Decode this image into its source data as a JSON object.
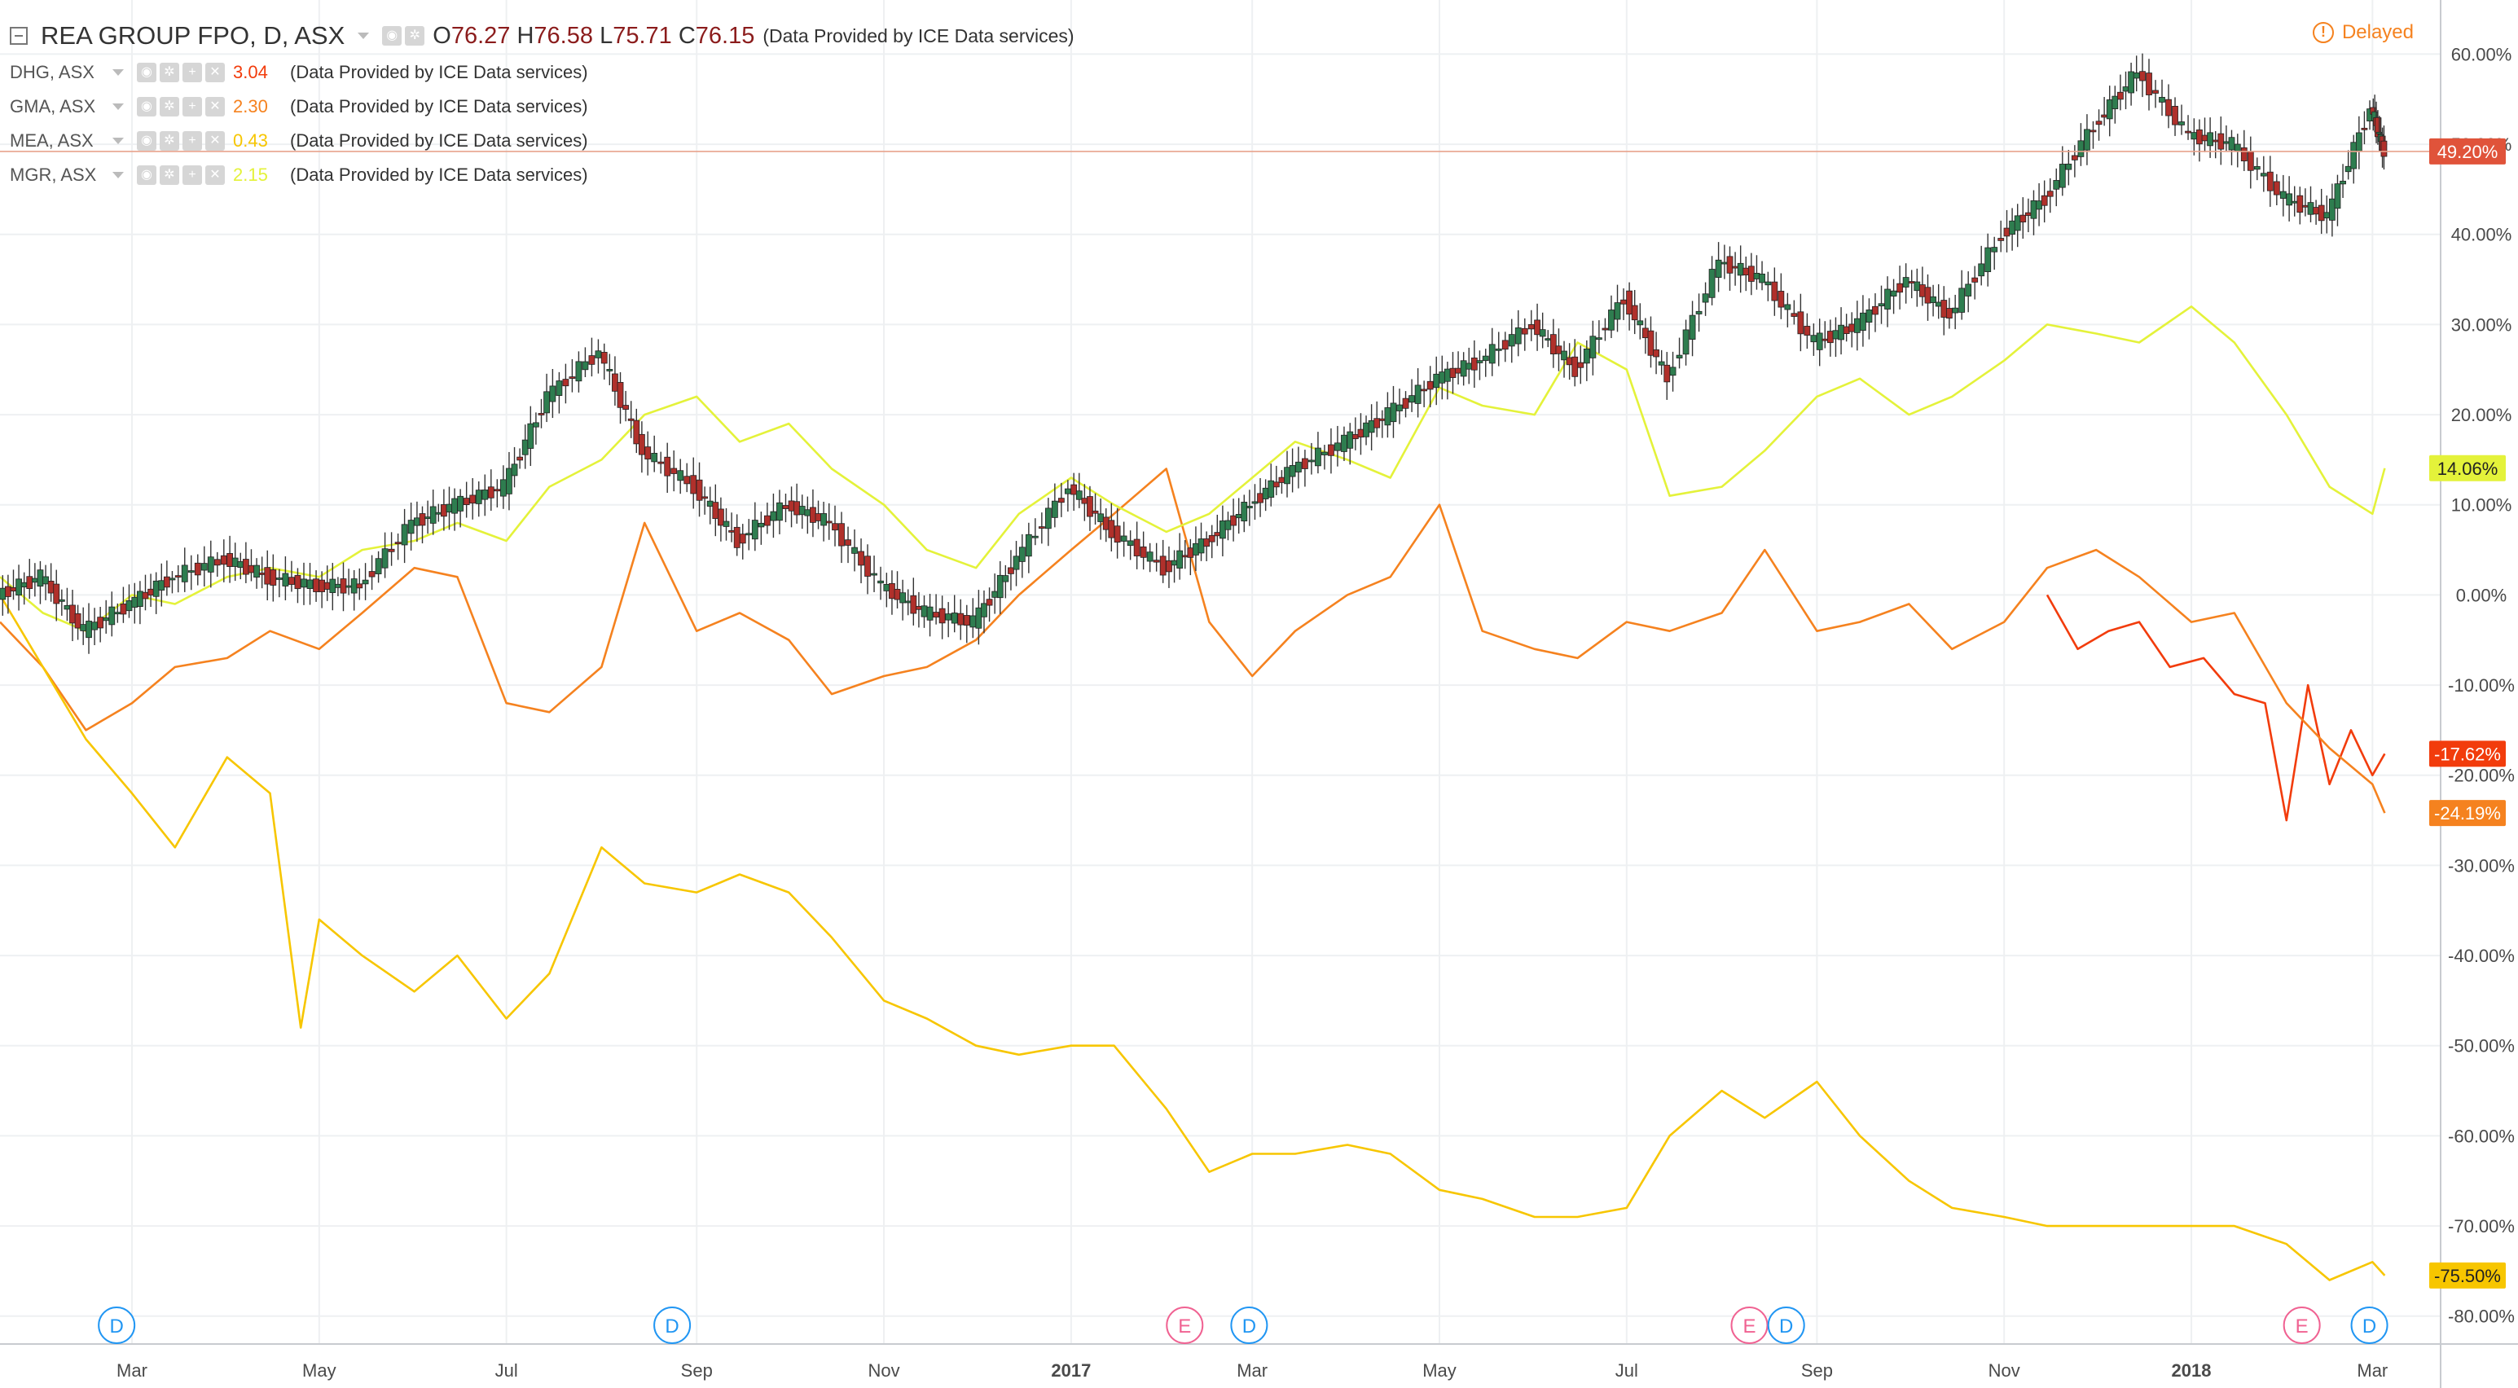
{
  "header": {
    "symbol": "REA GROUP FPO, D, ASX",
    "open_label": "O",
    "open": "76.27",
    "high_label": "H",
    "high": "76.58",
    "low_label": "L",
    "low": "75.71",
    "close_label": "C",
    "close": "76.15",
    "provider": "(Data Provided by ICE Data services)"
  },
  "status": {
    "delayed": "Delayed",
    "icon": "alert-circle-icon",
    "color": "#f5821f"
  },
  "comparisons": [
    {
      "name": "DHG, ASX",
      "value": "3.04",
      "color": "#f23c0c",
      "provider": "(Data Provided by ICE Data services)"
    },
    {
      "name": "GMA, ASX",
      "value": "2.30",
      "color": "#f5821f",
      "provider": "(Data Provided by ICE Data services)"
    },
    {
      "name": "MEA, ASX",
      "value": "0.43",
      "color": "#f7c600",
      "provider": "(Data Provided by ICE Data services)"
    },
    {
      "name": "MGR, ASX",
      "value": "2.15",
      "color": "#e4f23a",
      "provider": "(Data Provided by ICE Data services)"
    }
  ],
  "chart_data": {
    "type": "line",
    "candles_up_color": "#2e7d4f",
    "candles_down_color": "#b0302b",
    "y_axis": {
      "unit": "%",
      "range": [
        -84,
        66
      ],
      "ticks": [
        "60.00%",
        "50.00%",
        "40.00%",
        "30.00%",
        "20.00%",
        "10.00%",
        "0.00%",
        "-10.00%",
        "-20.00%",
        "-30.00%",
        "-40.00%",
        "-50.00%",
        "-60.00%",
        "-70.00%",
        "-80.00%"
      ]
    },
    "x_axis": {
      "ticks": [
        {
          "label": "Mar",
          "date": "2016-03-01",
          "bold": false
        },
        {
          "label": "May",
          "date": "2016-05-01",
          "bold": false
        },
        {
          "label": "Jul",
          "date": "2016-07-01",
          "bold": false
        },
        {
          "label": "Sep",
          "date": "2016-09-01",
          "bold": false
        },
        {
          "label": "Nov",
          "date": "2016-11-01",
          "bold": false
        },
        {
          "label": "2017",
          "date": "2017-01-01",
          "bold": true
        },
        {
          "label": "Mar",
          "date": "2017-03-01",
          "bold": false
        },
        {
          "label": "May",
          "date": "2017-05-01",
          "bold": false
        },
        {
          "label": "Jul",
          "date": "2017-07-01",
          "bold": false
        },
        {
          "label": "Sep",
          "date": "2017-09-01",
          "bold": false
        },
        {
          "label": "Nov",
          "date": "2017-11-01",
          "bold": false
        },
        {
          "label": "2018",
          "date": "2018-01-01",
          "bold": true
        },
        {
          "label": "Mar",
          "date": "2018-03-01",
          "bold": false
        }
      ]
    },
    "series": [
      {
        "name": "REA GROUP FPO, D, ASX",
        "style": "candles",
        "color": "#2e7d4f",
        "last_label": "49.20%",
        "last_value": 49.2,
        "x": [
          "2016-01-18",
          "2016-02-01",
          "2016-02-15",
          "2016-03-01",
          "2016-03-15",
          "2016-04-01",
          "2016-04-15",
          "2016-05-01",
          "2016-05-15",
          "2016-06-01",
          "2016-06-15",
          "2016-07-01",
          "2016-07-15",
          "2016-08-01",
          "2016-08-15",
          "2016-09-01",
          "2016-09-15",
          "2016-10-01",
          "2016-10-15",
          "2016-11-01",
          "2016-11-15",
          "2016-12-01",
          "2016-12-15",
          "2017-01-01",
          "2017-01-15",
          "2017-02-01",
          "2017-02-15",
          "2017-03-01",
          "2017-03-15",
          "2017-04-01",
          "2017-04-15",
          "2017-05-01",
          "2017-05-15",
          "2017-06-01",
          "2017-06-15",
          "2017-07-01",
          "2017-07-15",
          "2017-08-01",
          "2017-08-15",
          "2017-09-01",
          "2017-09-15",
          "2017-10-01",
          "2017-10-15",
          "2017-11-01",
          "2017-11-15",
          "2017-12-01",
          "2017-12-15",
          "2018-01-01",
          "2018-01-15",
          "2018-02-01",
          "2018-02-15",
          "2018-03-01",
          "2018-03-05"
        ],
        "values": [
          0,
          2,
          -4,
          -1,
          2,
          4,
          2,
          1,
          1,
          8,
          10,
          12,
          22,
          27,
          16,
          12,
          6,
          10,
          8,
          1,
          -2,
          -3,
          4,
          12,
          7,
          3,
          6,
          10,
          14,
          17,
          20,
          24,
          26,
          30,
          25,
          33,
          24,
          37,
          35,
          28,
          30,
          35,
          31,
          40,
          44,
          52,
          58,
          51,
          50,
          44,
          42,
          54,
          49.2
        ]
      },
      {
        "name": "DHG, ASX",
        "color": "#f23c0c",
        "last_label": "-17.62%",
        "last_value": -17.62,
        "x": [
          "2017-11-15",
          "2017-11-25",
          "2017-12-05",
          "2017-12-15",
          "2017-12-25",
          "2018-01-05",
          "2018-01-15",
          "2018-01-25",
          "2018-02-01",
          "2018-02-08",
          "2018-02-15",
          "2018-02-22",
          "2018-03-01",
          "2018-03-05"
        ],
        "values": [
          0,
          -6,
          -4,
          -3,
          -8,
          -7,
          -11,
          -12,
          -25,
          -10,
          -21,
          -15,
          -20,
          -17.62
        ]
      },
      {
        "name": "GMA, ASX",
        "color": "#f5821f",
        "last_label": "-24.19%",
        "last_value": -24.19,
        "x": [
          "2016-01-18",
          "2016-02-01",
          "2016-02-15",
          "2016-03-01",
          "2016-03-15",
          "2016-04-01",
          "2016-04-15",
          "2016-05-01",
          "2016-05-15",
          "2016-06-01",
          "2016-06-15",
          "2016-07-01",
          "2016-07-15",
          "2016-08-01",
          "2016-08-15",
          "2016-09-01",
          "2016-09-15",
          "2016-10-01",
          "2016-10-15",
          "2016-11-01",
          "2016-11-15",
          "2016-12-01",
          "2016-12-15",
          "2017-01-01",
          "2017-01-15",
          "2017-02-01",
          "2017-02-15",
          "2017-03-01",
          "2017-03-15",
          "2017-04-01",
          "2017-04-15",
          "2017-05-01",
          "2017-05-15",
          "2017-06-01",
          "2017-06-15",
          "2017-07-01",
          "2017-07-15",
          "2017-08-01",
          "2017-08-15",
          "2017-09-01",
          "2017-09-15",
          "2017-10-01",
          "2017-10-15",
          "2017-11-01",
          "2017-11-15",
          "2017-12-01",
          "2017-12-15",
          "2018-01-01",
          "2018-01-15",
          "2018-02-01",
          "2018-02-15",
          "2018-03-01",
          "2018-03-05"
        ],
        "values": [
          -3,
          -8,
          -15,
          -12,
          -8,
          -7,
          -4,
          -6,
          -2,
          3,
          2,
          -12,
          -13,
          -8,
          8,
          -4,
          -2,
          -5,
          -11,
          -9,
          -8,
          -5,
          0,
          5,
          9,
          14,
          -3,
          -9,
          -4,
          0,
          2,
          10,
          -4,
          -6,
          -7,
          -3,
          -4,
          -2,
          5,
          -4,
          -3,
          -1,
          -6,
          -3,
          3,
          5,
          2,
          -3,
          -2,
          -12,
          -17,
          -21,
          -24.19
        ]
      },
      {
        "name": "MEA, ASX",
        "color": "#f7c600",
        "last_label": "-75.50%",
        "last_value": -75.5,
        "x": [
          "2016-01-18",
          "2016-02-01",
          "2016-02-15",
          "2016-03-01",
          "2016-03-15",
          "2016-04-01",
          "2016-04-15",
          "2016-04-25",
          "2016-05-01",
          "2016-05-15",
          "2016-06-01",
          "2016-06-15",
          "2016-07-01",
          "2016-07-15",
          "2016-08-01",
          "2016-08-15",
          "2016-09-01",
          "2016-09-15",
          "2016-10-01",
          "2016-10-15",
          "2016-11-01",
          "2016-11-15",
          "2016-12-01",
          "2016-12-15",
          "2017-01-01",
          "2017-01-15",
          "2017-02-01",
          "2017-02-15",
          "2017-03-01",
          "2017-03-15",
          "2017-04-01",
          "2017-04-15",
          "2017-05-01",
          "2017-05-15",
          "2017-06-01",
          "2017-06-15",
          "2017-07-01",
          "2017-07-15",
          "2017-08-01",
          "2017-08-15",
          "2017-09-01",
          "2017-09-15",
          "2017-10-01",
          "2017-10-15",
          "2017-11-01",
          "2017-11-15",
          "2017-12-01",
          "2017-12-15",
          "2018-01-01",
          "2018-01-15",
          "2018-02-01",
          "2018-02-15",
          "2018-03-01",
          "2018-03-05"
        ],
        "values": [
          0,
          -8,
          -16,
          -22,
          -28,
          -18,
          -22,
          -48,
          -36,
          -40,
          -44,
          -40,
          -47,
          -42,
          -28,
          -32,
          -33,
          -31,
          -33,
          -38,
          -45,
          -47,
          -50,
          -51,
          -50,
          -50,
          -57,
          -64,
          -62,
          -62,
          -61,
          -62,
          -66,
          -67,
          -69,
          -69,
          -68,
          -60,
          -55,
          -58,
          -54,
          -60,
          -65,
          -68,
          -69,
          -70,
          -70,
          -70,
          -70,
          -70,
          -72,
          -76,
          -74,
          -75.5
        ]
      },
      {
        "name": "MGR, ASX",
        "color": "#e4f23a",
        "last_label": "14.06%",
        "last_value": 14.06,
        "x": [
          "2016-01-18",
          "2016-02-01",
          "2016-02-15",
          "2016-03-01",
          "2016-03-15",
          "2016-04-01",
          "2016-04-15",
          "2016-05-01",
          "2016-05-15",
          "2016-06-01",
          "2016-06-15",
          "2016-07-01",
          "2016-07-15",
          "2016-08-01",
          "2016-08-15",
          "2016-09-01",
          "2016-09-15",
          "2016-10-01",
          "2016-10-15",
          "2016-11-01",
          "2016-11-15",
          "2016-12-01",
          "2016-12-15",
          "2017-01-01",
          "2017-01-15",
          "2017-02-01",
          "2017-02-15",
          "2017-03-01",
          "2017-03-15",
          "2017-04-01",
          "2017-04-15",
          "2017-05-01",
          "2017-05-15",
          "2017-06-01",
          "2017-06-15",
          "2017-07-01",
          "2017-07-15",
          "2017-08-01",
          "2017-08-15",
          "2017-09-01",
          "2017-09-15",
          "2017-10-01",
          "2017-10-15",
          "2017-11-01",
          "2017-11-15",
          "2017-12-01",
          "2017-12-15",
          "2018-01-01",
          "2018-01-15",
          "2018-02-01",
          "2018-02-15",
          "2018-03-01",
          "2018-03-05"
        ],
        "values": [
          2,
          -2,
          -4,
          0,
          -1,
          2,
          3,
          2,
          5,
          6,
          8,
          6,
          12,
          15,
          20,
          22,
          17,
          19,
          14,
          10,
          5,
          3,
          9,
          13,
          10,
          7,
          9,
          13,
          17,
          15,
          13,
          23,
          21,
          20,
          28,
          25,
          11,
          12,
          16,
          22,
          24,
          20,
          22,
          26,
          30,
          29,
          28,
          32,
          28,
          20,
          12,
          9,
          14.06
        ]
      }
    ],
    "event_markers": [
      {
        "type": "D",
        "date": "2016-02-25",
        "color": "#2196f3"
      },
      {
        "type": "D",
        "date": "2016-08-24",
        "color": "#2196f3"
      },
      {
        "type": "E",
        "date": "2017-02-07",
        "color": "#f06292"
      },
      {
        "type": "D",
        "date": "2017-02-28",
        "color": "#2196f3"
      },
      {
        "type": "E",
        "date": "2017-08-10",
        "color": "#f06292"
      },
      {
        "type": "D",
        "date": "2017-08-22",
        "color": "#2196f3"
      },
      {
        "type": "E",
        "date": "2018-02-06",
        "color": "#f06292"
      },
      {
        "type": "D",
        "date": "2018-02-28",
        "color": "#2196f3"
      }
    ]
  }
}
